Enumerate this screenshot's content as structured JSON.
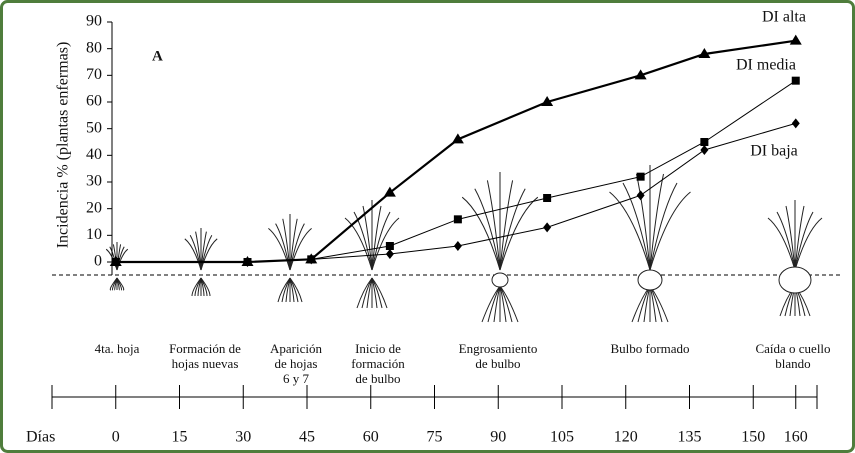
{
  "chart_data": {
    "type": "line",
    "panel_label": "A",
    "y_label": "Incidencia % (plantas enfermas)",
    "x_label": "Días",
    "x": [
      0,
      31,
      46,
      64.5,
      80.5,
      101.5,
      123.5,
      138.5,
      160
    ],
    "series": [
      {
        "name": "DI alta",
        "color": "#000000",
        "marker": "triangle",
        "values": [
          0,
          0,
          1,
          26,
          46,
          60,
          70,
          78,
          83
        ]
      },
      {
        "name": "DI media",
        "color": "#000000",
        "marker": "square",
        "values": [
          0,
          0,
          1,
          6,
          16,
          24,
          32,
          45,
          68
        ]
      },
      {
        "name": "DI baja",
        "color": "#000000",
        "marker": "diamond",
        "values": [
          0,
          0,
          1,
          3,
          6,
          13,
          25,
          42,
          52
        ]
      }
    ],
    "stages": [
      [
        "4ta. hoja"
      ],
      [
        "Formación de",
        "hojas nuevas"
      ],
      [
        "Aparición",
        "de hojas",
        "6 y 7"
      ],
      [
        "Inicio de",
        "formación",
        "de bulbo"
      ],
      [
        "Engrosamiento",
        "de bulbo"
      ],
      [
        "Bulbo formado"
      ],
      [
        "Caída o cuello",
        "blando"
      ]
    ],
    "xlim": [
      -15,
      165
    ],
    "xticks": [
      0,
      15,
      30,
      45,
      60,
      75,
      90,
      105,
      120,
      135,
      150,
      160
    ],
    "ylim": [
      0,
      90
    ],
    "yticks": [
      0,
      10,
      20,
      30,
      40,
      50,
      60,
      70,
      80,
      90
    ]
  }
}
